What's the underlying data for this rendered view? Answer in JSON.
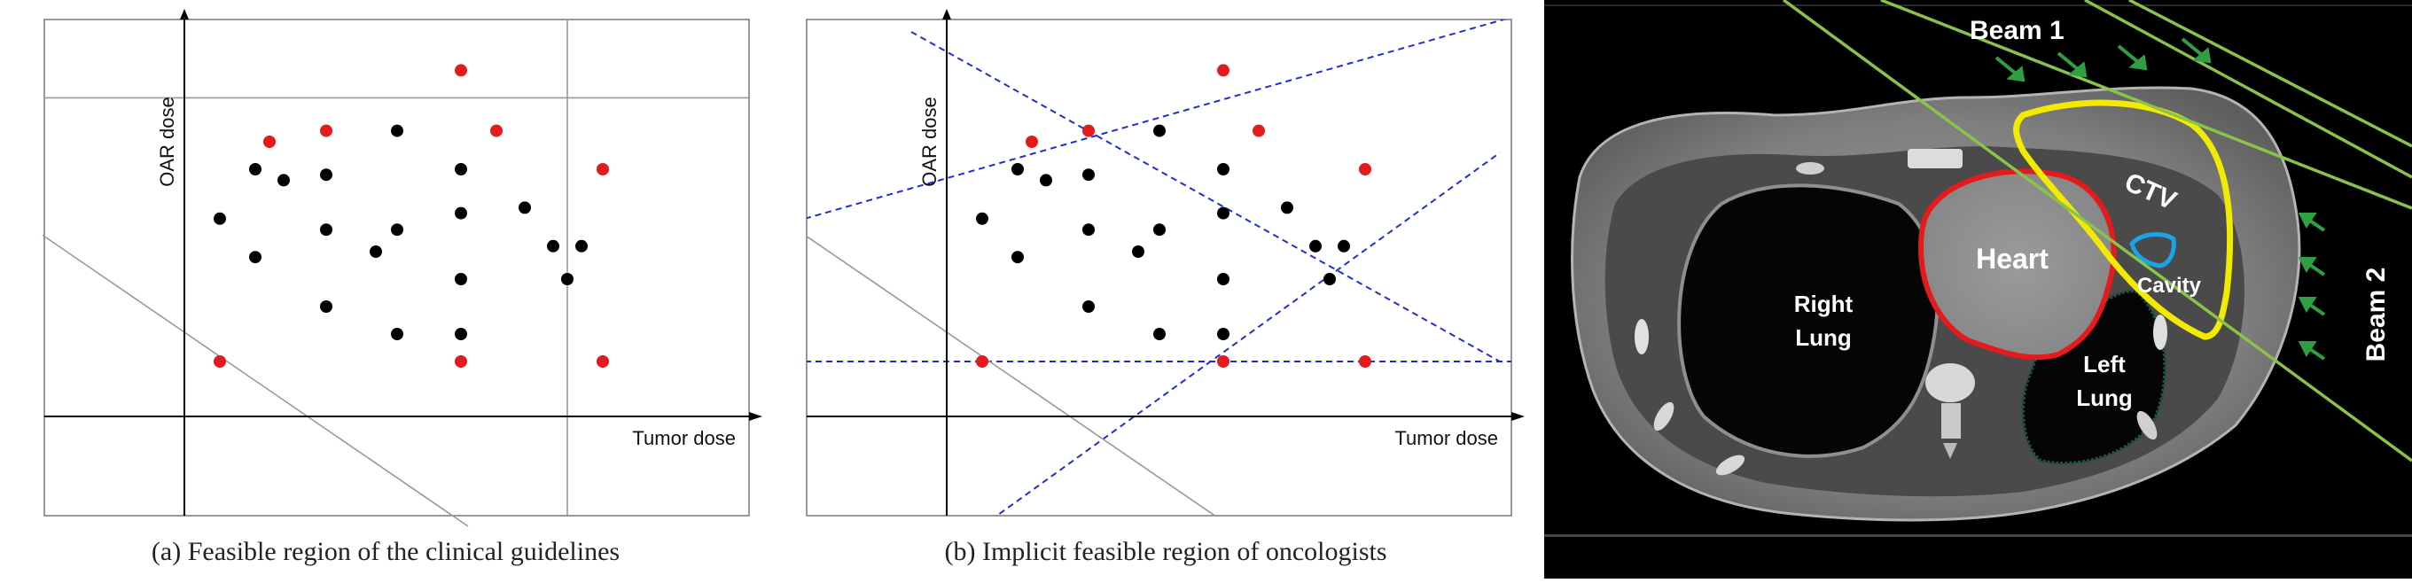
{
  "chart_data": [
    {
      "type": "scatter",
      "caption": "(a)  Feasible region of the clinical guidelines",
      "xlabel": "Tumor dose",
      "ylabel": "OAR dose",
      "points_black": [
        [
          0.5,
          3.6
        ],
        [
          1.0,
          2.9
        ],
        [
          1.0,
          4.5
        ],
        [
          1.4,
          4.3
        ],
        [
          2.0,
          2.0
        ],
        [
          2.0,
          3.4
        ],
        [
          2.0,
          4.4
        ],
        [
          2.7,
          3.0
        ],
        [
          3.0,
          1.5
        ],
        [
          3.0,
          3.4
        ],
        [
          3.0,
          5.2
        ],
        [
          3.9,
          1.5
        ],
        [
          3.9,
          2.5
        ],
        [
          3.9,
          3.7
        ],
        [
          3.9,
          4.5
        ],
        [
          4.8,
          3.8
        ],
        [
          5.2,
          3.1
        ],
        [
          5.4,
          2.5
        ],
        [
          5.6,
          3.1
        ]
      ],
      "points_red": [
        [
          0.5,
          1.0
        ],
        [
          1.2,
          5.0
        ],
        [
          2.0,
          5.2
        ],
        [
          3.9,
          1.0
        ],
        [
          3.9,
          6.3
        ],
        [
          4.4,
          5.2
        ],
        [
          5.9,
          4.5
        ],
        [
          5.9,
          1.0
        ]
      ],
      "guides": {
        "vline_x": 5.4,
        "hline_y": 5.8,
        "slope_line": [
          [
            -2.0,
            3.3
          ],
          [
            4.0,
            -2.0
          ]
        ]
      }
    },
    {
      "type": "scatter",
      "caption": "(b)  Implicit feasible region of oncologists",
      "xlabel": "Tumor dose",
      "ylabel": "OAR dose",
      "points_black": [
        [
          0.5,
          3.6
        ],
        [
          1.0,
          2.9
        ],
        [
          1.0,
          4.5
        ],
        [
          1.4,
          4.3
        ],
        [
          2.0,
          2.0
        ],
        [
          2.0,
          3.4
        ],
        [
          2.0,
          4.4
        ],
        [
          2.7,
          3.0
        ],
        [
          3.0,
          1.5
        ],
        [
          3.0,
          3.4
        ],
        [
          3.0,
          5.2
        ],
        [
          3.9,
          1.5
        ],
        [
          3.9,
          2.5
        ],
        [
          3.9,
          3.7
        ],
        [
          3.9,
          4.5
        ],
        [
          4.8,
          3.8
        ],
        [
          5.2,
          3.1
        ],
        [
          5.4,
          2.5
        ],
        [
          5.6,
          3.1
        ]
      ],
      "points_red": [
        [
          0.5,
          1.0
        ],
        [
          1.2,
          5.0
        ],
        [
          2.0,
          5.2
        ],
        [
          3.9,
          1.0
        ],
        [
          3.9,
          6.3
        ],
        [
          4.4,
          5.2
        ],
        [
          5.9,
          4.5
        ],
        [
          5.9,
          1.0
        ]
      ],
      "dashed_lines": [
        [
          [
            -2.0,
            3.6
          ],
          [
            10.5,
            8.2
          ]
        ],
        [
          [
            -0.5,
            7.0
          ],
          [
            7.8,
            1.0
          ]
        ],
        [
          [
            -2.0,
            1.0
          ],
          [
            10.5,
            1.0
          ]
        ],
        [
          [
            0.5,
            -2.0
          ],
          [
            7.8,
            4.8
          ]
        ]
      ],
      "slope_line": [
        [
          -2.0,
          3.3
        ],
        [
          4.0,
          -2.0
        ]
      ]
    }
  ],
  "ct_panel": {
    "labels": {
      "beam1": "Beam 1",
      "beam2": "Beam 2",
      "ctv": "CTV",
      "heart": "Heart",
      "right_lung_1": "Right",
      "right_lung_2": "Lung",
      "left_lung_1": "Left",
      "left_lung_2": "Lung",
      "cavity": "Cavity"
    },
    "colors": {
      "beam": "#8bc34a",
      "arrow": "#2ea043",
      "ctv": "#f2ea00",
      "heart": "#e41a1c",
      "cavity": "#1aa3e8",
      "lung_outline": "#1f4f4a"
    }
  }
}
